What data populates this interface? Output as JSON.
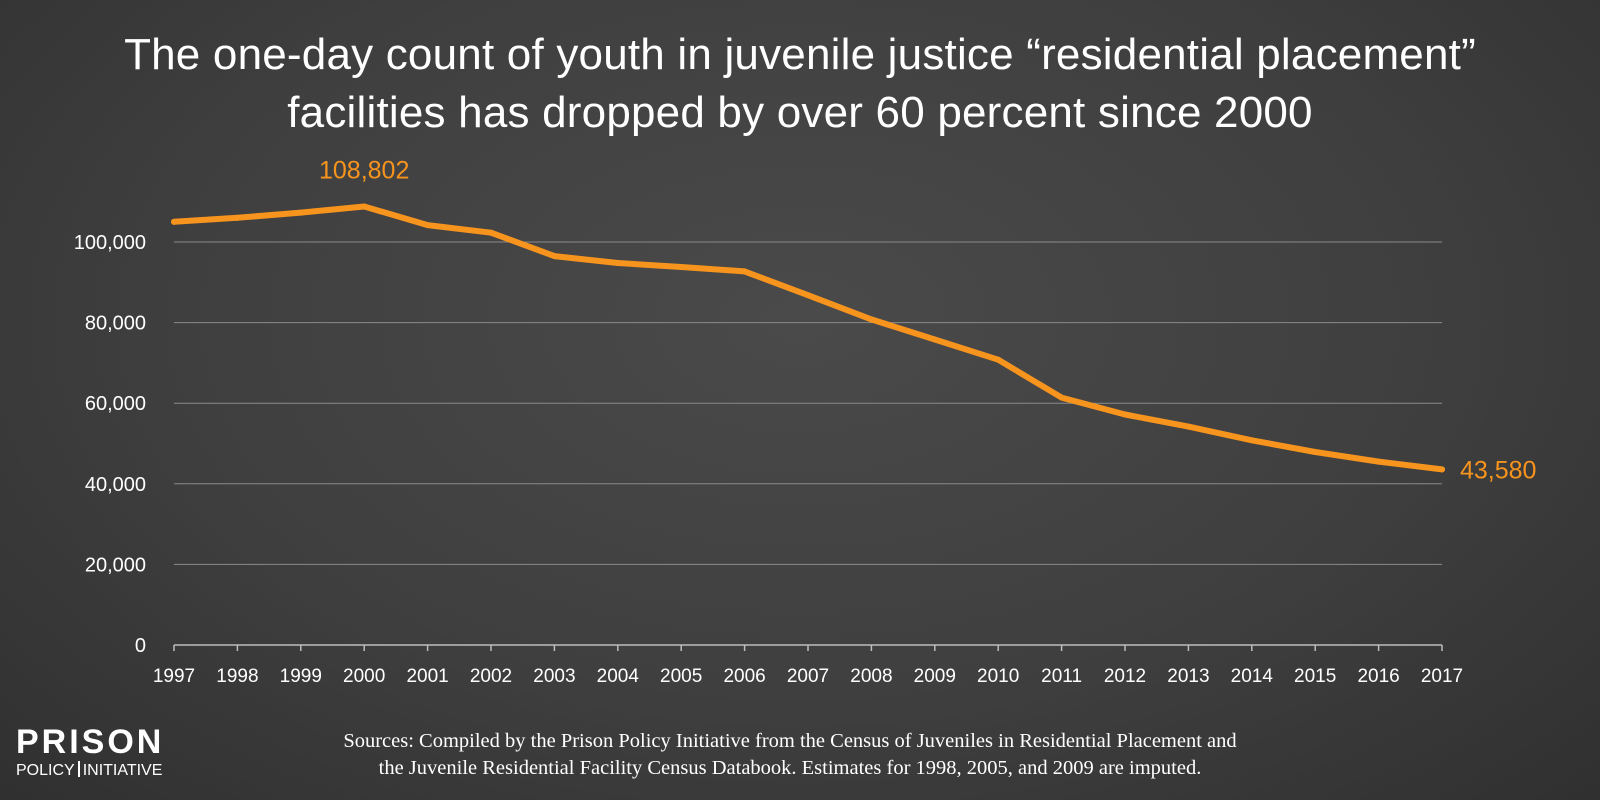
{
  "title_lines": [
    "The one-day count of youth in juvenile justice “residential placement”",
    "facilities has dropped by over 60 percent since 2000"
  ],
  "logo": {
    "top": "PRISON",
    "bottom_left": "POLICY",
    "bottom_right": "INITIATIVE"
  },
  "sources_lines": [
    "Sources: Compiled by the Prison Policy Initiative from the Census of Juveniles in Residential Placement and",
    "the Juvenile Residential Facility Census Databook. Estimates for 1998, 2005, and 2009 are imputed."
  ],
  "colors": {
    "line": "#F7941D",
    "gridline": "#8a8a8a",
    "axis": "#bdbdbd",
    "text": "#ffffff"
  },
  "chart_data": {
    "type": "line",
    "title": "The one-day count of youth in juvenile justice “residential placement” facilities has dropped by over 60 percent since 2000",
    "xlabel": "",
    "ylabel": "",
    "ylim": [
      0,
      120000
    ],
    "y_ticks": [
      0,
      20000,
      40000,
      60000,
      80000,
      100000
    ],
    "y_tick_labels": [
      "0",
      "20,000",
      "40,000",
      "60,000",
      "80,000",
      "100,000"
    ],
    "grid": true,
    "legend": "none",
    "categories": [
      "1997",
      "1998",
      "1999",
      "2000",
      "2001",
      "2002",
      "2003",
      "2004",
      "2005",
      "2006",
      "2007",
      "2008",
      "2009",
      "2010",
      "2011",
      "2012",
      "2013",
      "2014",
      "2015",
      "2016",
      "2017"
    ],
    "series": [
      {
        "values": [
          105000,
          106000,
          107300,
          108802,
          104200,
          102300,
          96500,
          94800,
          93800,
          92700,
          86800,
          80800,
          75800,
          70800,
          61400,
          57200,
          54200,
          50800,
          47900,
          45500,
          43580
        ]
      }
    ],
    "annotations": [
      {
        "category": "2000",
        "text": "108,802"
      },
      {
        "category": "2017",
        "text": "43,580"
      }
    ]
  }
}
